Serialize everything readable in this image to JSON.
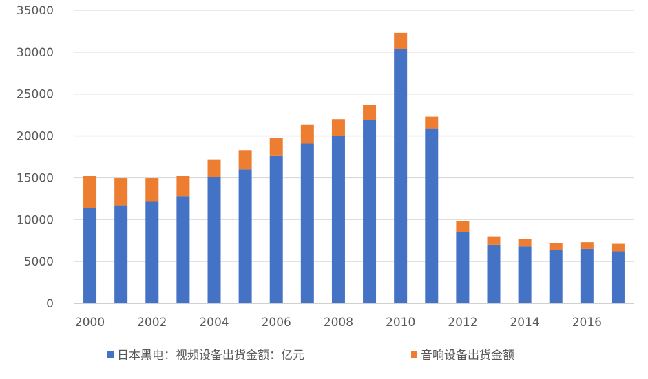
{
  "chart_data": {
    "type": "bar",
    "stacked": true,
    "categories": [
      "2000",
      "2001",
      "2002",
      "2003",
      "2004",
      "2005",
      "2006",
      "2007",
      "2008",
      "2009",
      "2010",
      "2011",
      "2012",
      "2013",
      "2014",
      "2015",
      "2016",
      "2017"
    ],
    "x_tick_labels": [
      "2000",
      "2002",
      "2004",
      "2006",
      "2008",
      "2010",
      "2012",
      "2014",
      "2016"
    ],
    "series": [
      {
        "name": "日本黑电：视频设备出货金额：亿元",
        "color": "#4472C4",
        "values": [
          11400,
          11700,
          12200,
          12800,
          15100,
          16000,
          17600,
          19100,
          20000,
          21900,
          30400,
          20900,
          8500,
          7000,
          6800,
          6400,
          6500,
          6200
        ]
      },
      {
        "name": "音响设备出货金额",
        "color": "#ED7D31",
        "values": [
          3800,
          3250,
          2750,
          2400,
          2100,
          2300,
          2200,
          2200,
          2000,
          1800,
          1900,
          1400,
          1300,
          1000,
          900,
          800,
          800,
          900
        ]
      }
    ],
    "ylim": [
      0,
      35000
    ],
    "y_ticks": [
      "0",
      "5000",
      "10000",
      "15000",
      "20000",
      "25000",
      "30000",
      "35000"
    ],
    "grid": true,
    "legend_position": "bottom",
    "title": "",
    "xlabel": "",
    "ylabel": ""
  }
}
